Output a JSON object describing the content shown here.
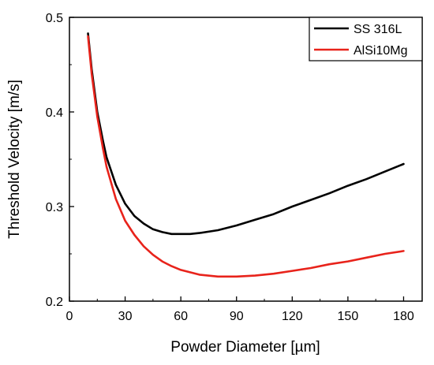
{
  "chart_data": {
    "type": "line",
    "xlabel": "Powder Diameter [µm]",
    "ylabel": "Threshold Velocity [m/s]",
    "xlim": [
      0,
      190
    ],
    "ylim": [
      0.2,
      0.5
    ],
    "x_ticks": [
      0,
      30,
      60,
      90,
      120,
      150,
      180
    ],
    "y_ticks": [
      0.2,
      0.3,
      0.4,
      0.5
    ],
    "grid": false,
    "legend_position": "top-right",
    "series": [
      {
        "name": "SS 316L",
        "color": "#000000",
        "x": [
          10,
          12,
          15,
          18,
          20,
          25,
          30,
          35,
          40,
          45,
          50,
          55,
          60,
          65,
          70,
          80,
          90,
          100,
          110,
          120,
          130,
          140,
          150,
          160,
          170,
          180
        ],
        "y": [
          0.483,
          0.445,
          0.4,
          0.37,
          0.352,
          0.323,
          0.303,
          0.29,
          0.282,
          0.276,
          0.273,
          0.271,
          0.271,
          0.271,
          0.272,
          0.275,
          0.28,
          0.286,
          0.292,
          0.3,
          0.307,
          0.314,
          0.322,
          0.329,
          0.337,
          0.345
        ]
      },
      {
        "name": "AlSi10Mg",
        "color": "#e8231b",
        "x": [
          10,
          12,
          15,
          18,
          20,
          25,
          30,
          35,
          40,
          45,
          50,
          55,
          60,
          70,
          80,
          90,
          100,
          110,
          120,
          130,
          140,
          150,
          160,
          170,
          180
        ],
        "y": [
          0.48,
          0.44,
          0.395,
          0.362,
          0.342,
          0.308,
          0.285,
          0.27,
          0.258,
          0.249,
          0.242,
          0.237,
          0.233,
          0.228,
          0.226,
          0.226,
          0.227,
          0.229,
          0.232,
          0.235,
          0.239,
          0.242,
          0.246,
          0.25,
          0.253
        ]
      }
    ]
  }
}
